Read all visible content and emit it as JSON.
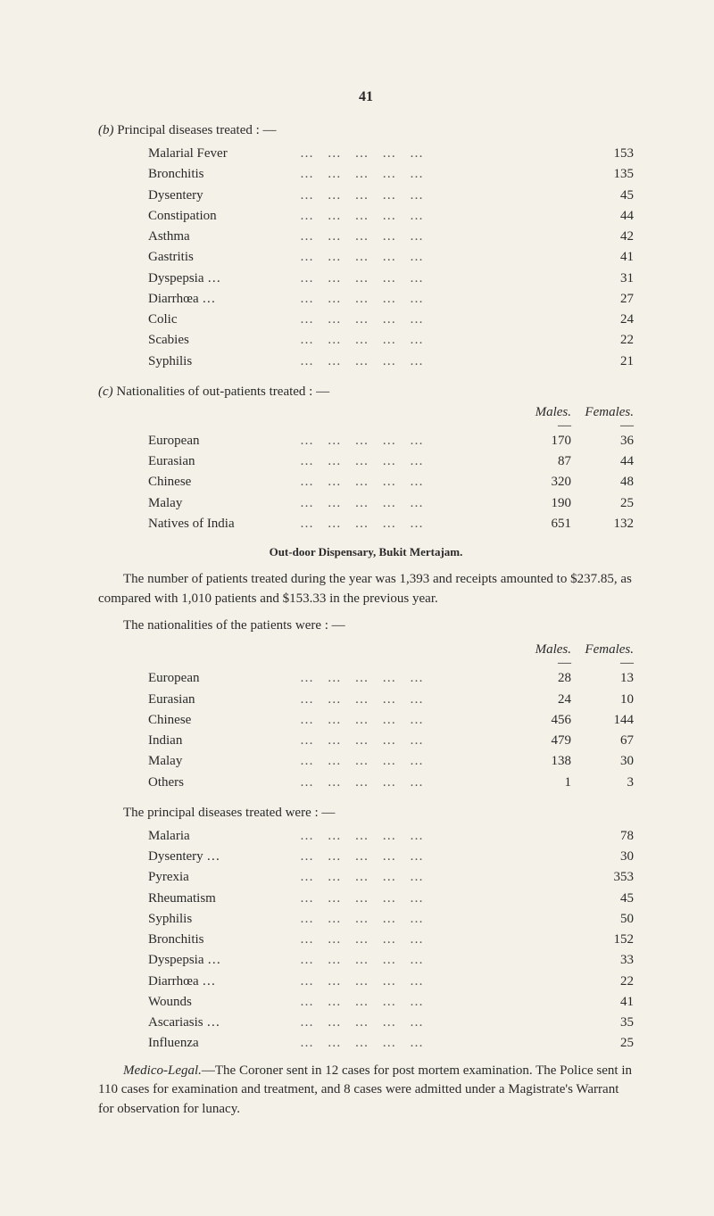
{
  "page_number": "41",
  "sections": {
    "b": {
      "heading_label": "(b)",
      "heading_text": "Principal diseases treated : —",
      "items": [
        {
          "name": "Malarial Fever",
          "value": "153"
        },
        {
          "name": "Bronchitis",
          "value": "135"
        },
        {
          "name": "Dysentery",
          "value": "45"
        },
        {
          "name": "Constipation",
          "value": "44"
        },
        {
          "name": "Asthma",
          "value": "42"
        },
        {
          "name": "Gastritis",
          "value": "41"
        },
        {
          "name": "Dyspepsia …",
          "value": "31"
        },
        {
          "name": "Diarrhœa …",
          "value": "27"
        },
        {
          "name": "Colic",
          "value": "24"
        },
        {
          "name": "Scabies",
          "value": "22"
        },
        {
          "name": "Syphilis",
          "value": "21"
        }
      ]
    },
    "c": {
      "heading_label": "(c)",
      "heading_text": "Nationalities of out-patients treated : —",
      "col1": "Males.",
      "col2": "Females.",
      "dash": "—",
      "items": [
        {
          "name": "European",
          "males": "170",
          "females": "36"
        },
        {
          "name": "Eurasian",
          "males": "87",
          "females": "44"
        },
        {
          "name": "Chinese",
          "males": "320",
          "females": "48"
        },
        {
          "name": "Malay",
          "males": "190",
          "females": "25"
        },
        {
          "name": "Natives of India",
          "males": "651",
          "females": "132"
        }
      ]
    }
  },
  "dispensary_heading": "Out-door Dispensary, Bukit Mertajam.",
  "para1": "The number of patients treated during the year was 1,393 and receipts amounted to $237.85, as compared with 1,010 patients and $153.33 in the previous year.",
  "para2": "The nationalities of the patients were : —",
  "nat": {
    "col1": "Males.",
    "col2": "Females.",
    "dash": "—",
    "items": [
      {
        "name": "European",
        "males": "28",
        "females": "13"
      },
      {
        "name": "Eurasian",
        "males": "24",
        "females": "10"
      },
      {
        "name": "Chinese",
        "males": "456",
        "females": "144"
      },
      {
        "name": "Indian",
        "males": "479",
        "females": "67"
      },
      {
        "name": "Malay",
        "males": "138",
        "females": "30"
      },
      {
        "name": "Others",
        "males": "1",
        "females": "3"
      }
    ]
  },
  "diseases2": {
    "heading": "The principal diseases treated were : —",
    "items": [
      {
        "name": "Malaria",
        "value": "78"
      },
      {
        "name": "Dysentery …",
        "value": "30"
      },
      {
        "name": "Pyrexia",
        "value": "353"
      },
      {
        "name": "Rheumatism",
        "value": "45"
      },
      {
        "name": "Syphilis",
        "value": "50"
      },
      {
        "name": "Bronchitis",
        "value": "152"
      },
      {
        "name": "Dyspepsia …",
        "value": "33"
      },
      {
        "name": "Diarrhœa …",
        "value": "22"
      },
      {
        "name": "Wounds",
        "value": "41"
      },
      {
        "name": "Ascariasis …",
        "value": "35"
      },
      {
        "name": "Influenza",
        "value": "25"
      }
    ]
  },
  "medico_label": "Medico-Legal.",
  "medico_text": "—The Coroner sent in 12 cases for post mortem examination. The Police sent in 110 cases for examination and treatment, and 8 cases were admitted under a Magistrate's Warrant for observation for lunacy.",
  "dots": "…   …   …   …   …"
}
